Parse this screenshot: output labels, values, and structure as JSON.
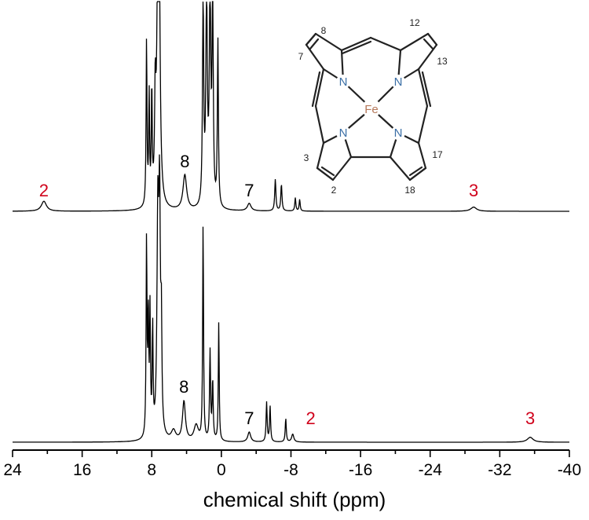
{
  "chart_data": {
    "type": "line",
    "xlabel": "chemical shift (ppm)",
    "ylabel": "",
    "xlim": [
      24,
      -40
    ],
    "xticks": [
      24,
      16,
      8,
      0,
      -8,
      -16,
      -24,
      -32,
      -40
    ],
    "xtick_labels": [
      "24",
      "16",
      "8",
      "0",
      "-8",
      "-16",
      "-24",
      "-32",
      "-40"
    ],
    "grid": false,
    "series": [
      {
        "stack_position": "top",
        "peaks": [
          {
            "ppm": 20.4,
            "height": 0.06,
            "width": 0.35
          },
          {
            "ppm": 8.6,
            "height": 1.0,
            "width": 0.06
          },
          {
            "ppm": 8.3,
            "height": 0.65,
            "width": 0.06
          },
          {
            "ppm": 8.0,
            "height": 0.68,
            "width": 0.06
          },
          {
            "ppm": 7.6,
            "height": 0.58,
            "width": 0.08
          },
          {
            "ppm": 7.3,
            "height": 1.25,
            "width": 0.15
          },
          {
            "ppm": 7.15,
            "height": 1.25,
            "width": 0.12
          },
          {
            "ppm": 4.2,
            "height": 0.21,
            "width": 0.25
          },
          {
            "ppm": 2.1,
            "height": 1.25,
            "width": 0.08
          },
          {
            "ppm": 1.7,
            "height": 1.25,
            "width": 0.1
          },
          {
            "ppm": 1.3,
            "height": 1.25,
            "width": 0.1
          },
          {
            "ppm": 1.0,
            "height": 1.25,
            "width": 0.08
          },
          {
            "ppm": 0.4,
            "height": 1.0,
            "width": 0.07
          },
          {
            "ppm": -3.2,
            "height": 0.045,
            "width": 0.25
          },
          {
            "ppm": -6.2,
            "height": 0.19,
            "width": 0.08
          },
          {
            "ppm": -6.9,
            "height": 0.16,
            "width": 0.08
          },
          {
            "ppm": -8.5,
            "height": 0.08,
            "width": 0.07
          },
          {
            "ppm": -9.0,
            "height": 0.07,
            "width": 0.07
          },
          {
            "ppm": -29.0,
            "height": 0.025,
            "width": 0.4
          }
        ]
      },
      {
        "stack_position": "bottom",
        "peaks": [
          {
            "ppm": 8.6,
            "height": 1.0,
            "width": 0.06
          },
          {
            "ppm": 8.4,
            "height": 0.6,
            "width": 0.06
          },
          {
            "ppm": 8.2,
            "height": 0.62,
            "width": 0.06
          },
          {
            "ppm": 7.9,
            "height": 0.55,
            "width": 0.06
          },
          {
            "ppm": 7.3,
            "height": 1.1,
            "width": 0.12
          },
          {
            "ppm": 7.1,
            "height": 1.1,
            "width": 0.1
          },
          {
            "ppm": 6.9,
            "height": 0.5,
            "width": 0.07
          },
          {
            "ppm": 5.5,
            "height": 0.05,
            "width": 0.3
          },
          {
            "ppm": 4.3,
            "height": 0.2,
            "width": 0.2
          },
          {
            "ppm": 2.9,
            "height": 0.08,
            "width": 0.3
          },
          {
            "ppm": 2.1,
            "height": 1.1,
            "width": 0.06
          },
          {
            "ppm": 1.3,
            "height": 0.45,
            "width": 0.07
          },
          {
            "ppm": 1.0,
            "height": 0.3,
            "width": 0.07
          },
          {
            "ppm": 0.3,
            "height": 0.6,
            "width": 0.06
          },
          {
            "ppm": -3.2,
            "height": 0.05,
            "width": 0.2
          },
          {
            "ppm": -5.2,
            "height": 0.2,
            "width": 0.07
          },
          {
            "ppm": -5.6,
            "height": 0.18,
            "width": 0.07
          },
          {
            "ppm": -7.4,
            "height": 0.12,
            "width": 0.07
          },
          {
            "ppm": -8.2,
            "height": 0.04,
            "width": 0.15
          },
          {
            "ppm": -35.5,
            "height": 0.025,
            "width": 0.4
          }
        ]
      }
    ],
    "annotations": [
      {
        "spectrum": "top",
        "text": "2",
        "ppm": 20.4,
        "color": "#d0021b"
      },
      {
        "spectrum": "top",
        "text": "8",
        "ppm": 4.2,
        "color": "#000000"
      },
      {
        "spectrum": "top",
        "text": "7",
        "ppm": -3.2,
        "color": "#000000"
      },
      {
        "spectrum": "top",
        "text": "3",
        "ppm": -29.0,
        "color": "#d0021b"
      },
      {
        "spectrum": "bottom",
        "text": "8",
        "ppm": 4.3,
        "color": "#000000"
      },
      {
        "spectrum": "bottom",
        "text": "7",
        "ppm": -3.2,
        "color": "#000000"
      },
      {
        "spectrum": "bottom",
        "text": "2",
        "ppm": -9.0,
        "color": "#d0021b"
      },
      {
        "spectrum": "bottom",
        "text": "3",
        "ppm": -35.5,
        "color": "#d0021b"
      }
    ]
  },
  "structure": {
    "metal": "Fe",
    "nitrogen_label": "N",
    "position_labels": [
      "8",
      "12",
      "7",
      "13",
      "3",
      "17",
      "2",
      "18"
    ],
    "colors": {
      "nitrogen": "#3a6ea5",
      "metal": "#b5785a",
      "bond": "#222222"
    }
  }
}
